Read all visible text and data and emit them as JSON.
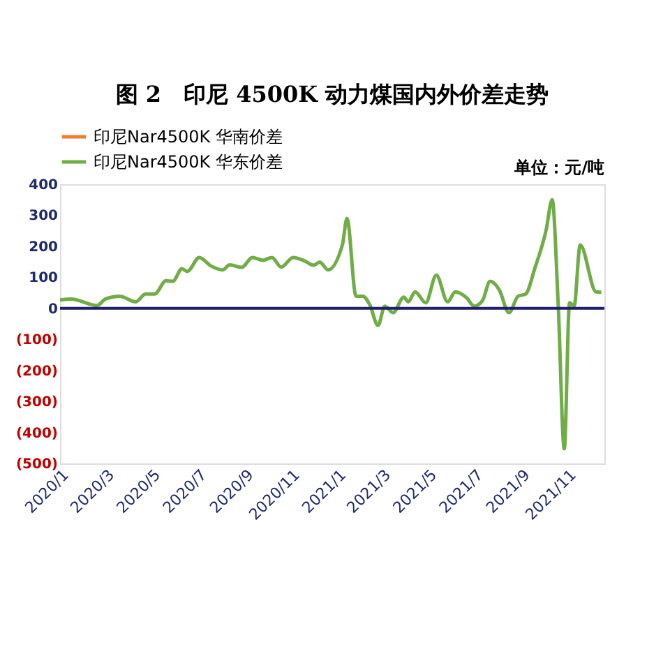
{
  "chart_data": {
    "type": "line",
    "title": "图 2　印尼 4500K 动力煤国内外价差走势",
    "annotations": [
      "单位：元/吨"
    ],
    "x": [
      "2020-01-01",
      "2020-01-16",
      "2020-02-19",
      "2020-03-01",
      "2020-03-20",
      "2020-04-10",
      "2020-04-23",
      "2020-05-05",
      "2020-05-20",
      "2020-05-29",
      "2020-06-10",
      "2020-06-17",
      "2020-07-03",
      "2020-07-18",
      "2020-08-03",
      "2020-08-12",
      "2020-08-28",
      "2020-09-11",
      "2020-09-25",
      "2020-10-07",
      "2020-10-19",
      "2020-11-04",
      "2020-11-19",
      "2020-12-01",
      "2020-12-09",
      "2020-12-20",
      "2021-01-08",
      "2021-01-14",
      "2021-01-26",
      "2021-02-04",
      "2021-02-13",
      "2021-02-24",
      "2021-03-05",
      "2021-03-16",
      "2021-03-30",
      "2021-04-05",
      "2021-04-14",
      "2021-04-28",
      "2021-05-12",
      "2021-05-27",
      "2021-06-06",
      "2021-06-21",
      "2021-07-01",
      "2021-07-12",
      "2021-07-22",
      "2021-08-03",
      "2021-08-16",
      "2021-08-28",
      "2021-09-07",
      "2021-09-19",
      "2021-10-04",
      "2021-10-12",
      "2021-10-20",
      "2021-10-28",
      "2021-11-04",
      "2021-11-10",
      "2021-11-18",
      "2021-12-09",
      "2021-12-16"
    ],
    "series": [
      {
        "name": "印尼Nar4500K 华南价差",
        "color": "#ed7d31",
        "values": [
          null,
          null,
          null,
          null,
          null,
          null,
          null,
          null,
          null,
          null,
          null,
          null,
          null,
          null,
          null,
          null,
          null,
          null,
          null,
          null,
          null,
          null,
          null,
          null,
          null,
          null,
          null,
          null,
          null,
          null,
          null,
          null,
          null,
          null,
          null,
          null,
          null,
          null,
          null,
          null,
          null,
          null,
          null,
          null,
          null,
          null,
          null,
          null,
          null,
          null,
          null,
          null,
          null,
          null,
          null,
          null,
          null,
          null,
          null
        ]
      },
      {
        "name": "印尼Nar4500K 华东价差",
        "color": "#70ad47",
        "values": [
          27,
          30,
          9,
          30,
          39,
          21,
          46,
          46,
          89,
          87,
          128,
          119,
          164,
          137,
          124,
          140,
          132,
          164,
          155,
          164,
          133,
          164,
          153,
          139,
          149,
          124,
          205,
          290,
          39,
          39,
          12,
          -55,
          7,
          -14,
          36,
          21,
          53,
          18,
          107,
          21,
          53,
          34,
          7,
          25,
          87,
          60,
          -14,
          39,
          46,
          128,
          252,
          350,
          12,
          -453,
          18,
          7,
          204,
          53,
          52
        ]
      }
    ],
    "xlim": [
      "2020-01-01",
      "2021-12-20"
    ],
    "xticks": [
      {
        "value": "2020-01-01",
        "label": "2020/1"
      },
      {
        "value": "2020-03-01",
        "label": "2020/3"
      },
      {
        "value": "2020-05-01",
        "label": "2020/5"
      },
      {
        "value": "2020-07-01",
        "label": "2020/7"
      },
      {
        "value": "2020-09-01",
        "label": "2020/9"
      },
      {
        "value": "2020-11-01",
        "label": "2020/11"
      },
      {
        "value": "2021-01-01",
        "label": "2021/1"
      },
      {
        "value": "2021-03-01",
        "label": "2021/3"
      },
      {
        "value": "2021-05-01",
        "label": "2021/5"
      },
      {
        "value": "2021-07-01",
        "label": "2021/7"
      },
      {
        "value": "2021-09-01",
        "label": "2021/9"
      },
      {
        "value": "2021-11-01",
        "label": "2021/11"
      }
    ],
    "ylim": [
      -500,
      400
    ],
    "yticks": [
      {
        "value": -500,
        "label": "(500)"
      },
      {
        "value": -400,
        "label": "(400)"
      },
      {
        "value": -300,
        "label": "(300)"
      },
      {
        "value": -200,
        "label": "(200)"
      },
      {
        "value": -100,
        "label": "(100)"
      },
      0,
      100,
      200,
      300,
      400
    ],
    "ref_lines": [
      {
        "axis": "y",
        "value": 0,
        "color": "#1f1f6b"
      }
    ],
    "grid": false,
    "legend": "top",
    "line_style": "solid",
    "marker": "none"
  }
}
